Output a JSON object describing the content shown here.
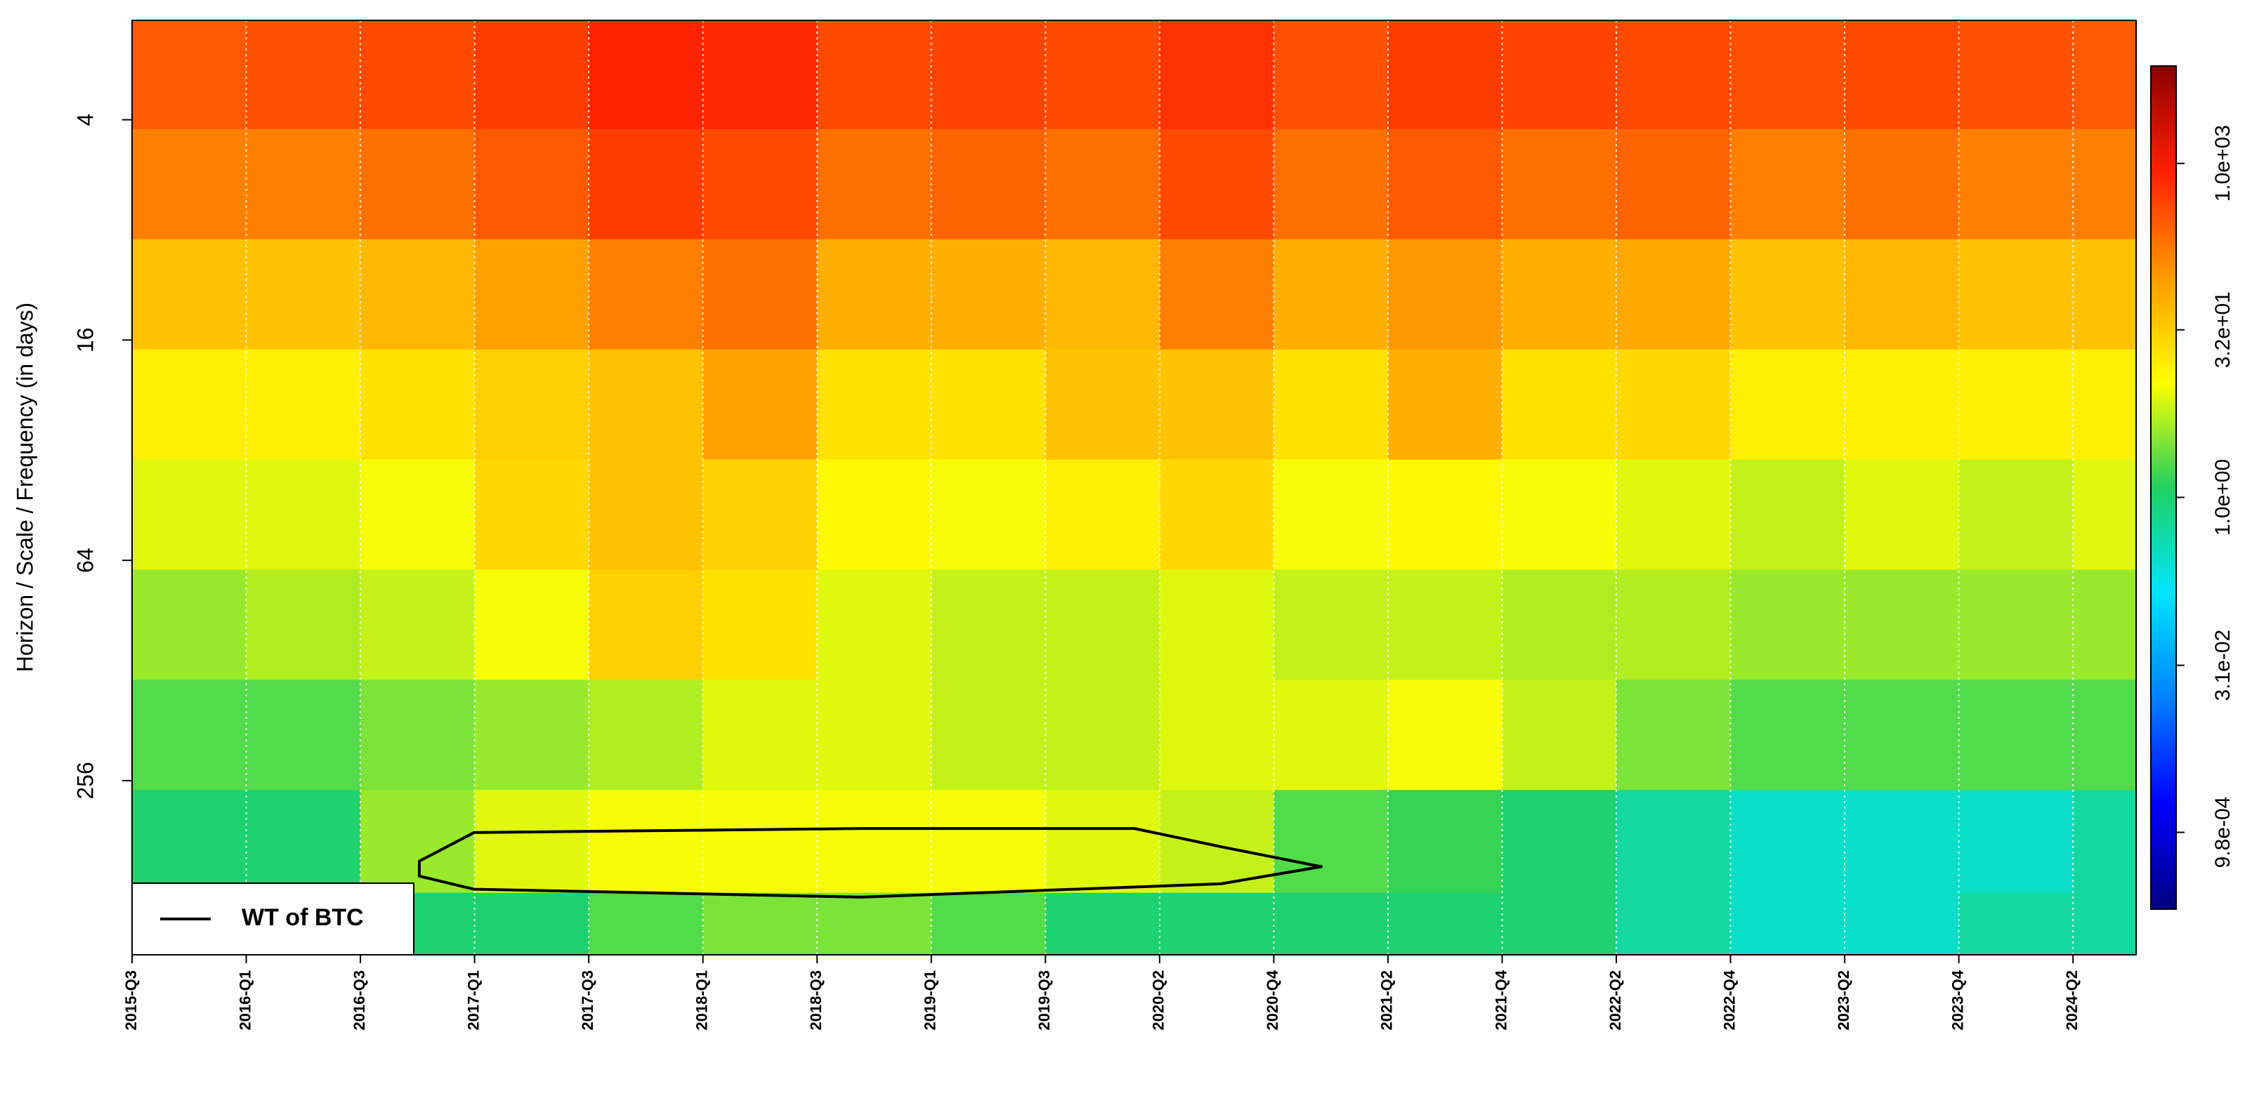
{
  "chart_data": {
    "type": "heatmap",
    "ylabel": "Horizon / Scale / Frequency (in days)",
    "x": [
      95,
      285,
      475,
      665,
      855,
      1045,
      1235,
      1425,
      1615,
      1805,
      1995,
      2185,
      2375,
      2565,
      2755,
      2945,
      3135,
      3325
    ],
    "y": [
      3,
      6,
      12,
      24,
      48,
      96,
      192,
      384,
      700
    ],
    "z": [
      [
        300,
        350,
        400,
        500,
        800,
        700,
        400,
        450,
        400,
        600,
        350,
        500,
        450,
        400,
        350,
        400,
        350,
        300
      ],
      [
        150,
        150,
        200,
        300,
        500,
        400,
        200,
        250,
        200,
        400,
        200,
        300,
        200,
        250,
        150,
        200,
        150,
        150
      ],
      [
        40,
        40,
        50,
        80,
        150,
        200,
        60,
        60,
        50,
        150,
        60,
        100,
        60,
        70,
        40,
        50,
        40,
        40
      ],
      [
        15,
        15,
        20,
        30,
        40,
        80,
        20,
        20,
        40,
        40,
        20,
        60,
        20,
        25,
        15,
        15,
        15,
        15
      ],
      [
        8,
        8,
        10,
        25,
        40,
        30,
        12,
        10,
        15,
        25,
        10,
        12,
        10,
        8,
        6,
        8,
        6,
        8
      ],
      [
        4,
        5,
        6,
        10,
        30,
        20,
        8,
        6,
        6,
        8,
        6,
        6,
        5,
        5,
        4,
        4,
        4,
        4
      ],
      [
        2,
        2,
        3,
        4,
        5,
        8,
        8,
        6,
        6,
        8,
        8,
        10,
        6,
        3,
        2,
        2,
        2,
        2
      ],
      [
        1,
        1,
        4,
        8,
        10,
        10,
        10,
        10,
        8,
        6,
        2,
        1.5,
        1,
        0.5,
        0.3,
        0.3,
        0.3,
        0.5
      ],
      [
        0.5,
        0.5,
        1,
        1,
        2,
        3,
        3,
        2,
        1,
        1,
        1,
        1,
        1,
        0.5,
        0.3,
        0.3,
        0.5,
        0.5
      ]
    ],
    "xlim": [
      0,
      3335
    ],
    "xticks": [
      {
        "value": 0,
        "label": "2015-Q3"
      },
      {
        "value": 190,
        "label": "2016-Q1"
      },
      {
        "value": 380,
        "label": "2016-Q3"
      },
      {
        "value": 570,
        "label": "2017-Q1"
      },
      {
        "value": 760,
        "label": "2017-Q3"
      },
      {
        "value": 950,
        "label": "2018-Q1"
      },
      {
        "value": 1140,
        "label": "2018-Q3"
      },
      {
        "value": 1330,
        "label": "2019-Q1"
      },
      {
        "value": 1520,
        "label": "2019-Q3"
      },
      {
        "value": 1710,
        "label": "2020-Q2"
      },
      {
        "value": 1900,
        "label": "2020-Q4"
      },
      {
        "value": 2090,
        "label": "2021-Q2"
      },
      {
        "value": 2280,
        "label": "2021-Q4"
      },
      {
        "value": 2470,
        "label": "2022-Q2"
      },
      {
        "value": 2660,
        "label": "2022-Q4"
      },
      {
        "value": 2850,
        "label": "2023-Q2"
      },
      {
        "value": 3040,
        "label": "2023-Q4"
      },
      {
        "value": 3230,
        "label": "2024-Q2"
      }
    ],
    "ylim": [
      2.14,
      766
    ],
    "yticks": [
      4,
      16,
      64,
      256
    ],
    "log_y": true,
    "y_reversed": true,
    "grid": true,
    "zlim": [
      0.0002,
      7500
    ],
    "log_z": true,
    "colorscale": [
      "#000080",
      "#0000ff",
      "#0080ff",
      "#00e5ff",
      "#20d060",
      "#ffff00",
      "#ff9900",
      "#ff2000",
      "#8b0000"
    ],
    "zticks": [
      {
        "value": 1000,
        "label": "1.0e+03"
      },
      {
        "value": 32,
        "label": "3.2e+01"
      },
      {
        "value": 1,
        "label": "1.0e+00"
      },
      {
        "value": 0.031,
        "label": "3.1e-02"
      },
      {
        "value": 0.00098,
        "label": "9.8e-04"
      }
    ],
    "series": [
      {
        "name": "WT of BTC",
        "color": "#000000",
        "x": [
          478,
          569,
          1214,
          1668,
          1812,
          1979,
          1812,
          1214,
          569,
          478
        ],
        "values": [
          425,
          355,
          346,
          346,
          388,
          440,
          490,
          533,
          507,
          467
        ]
      }
    ],
    "legend": "bottom-left"
  }
}
